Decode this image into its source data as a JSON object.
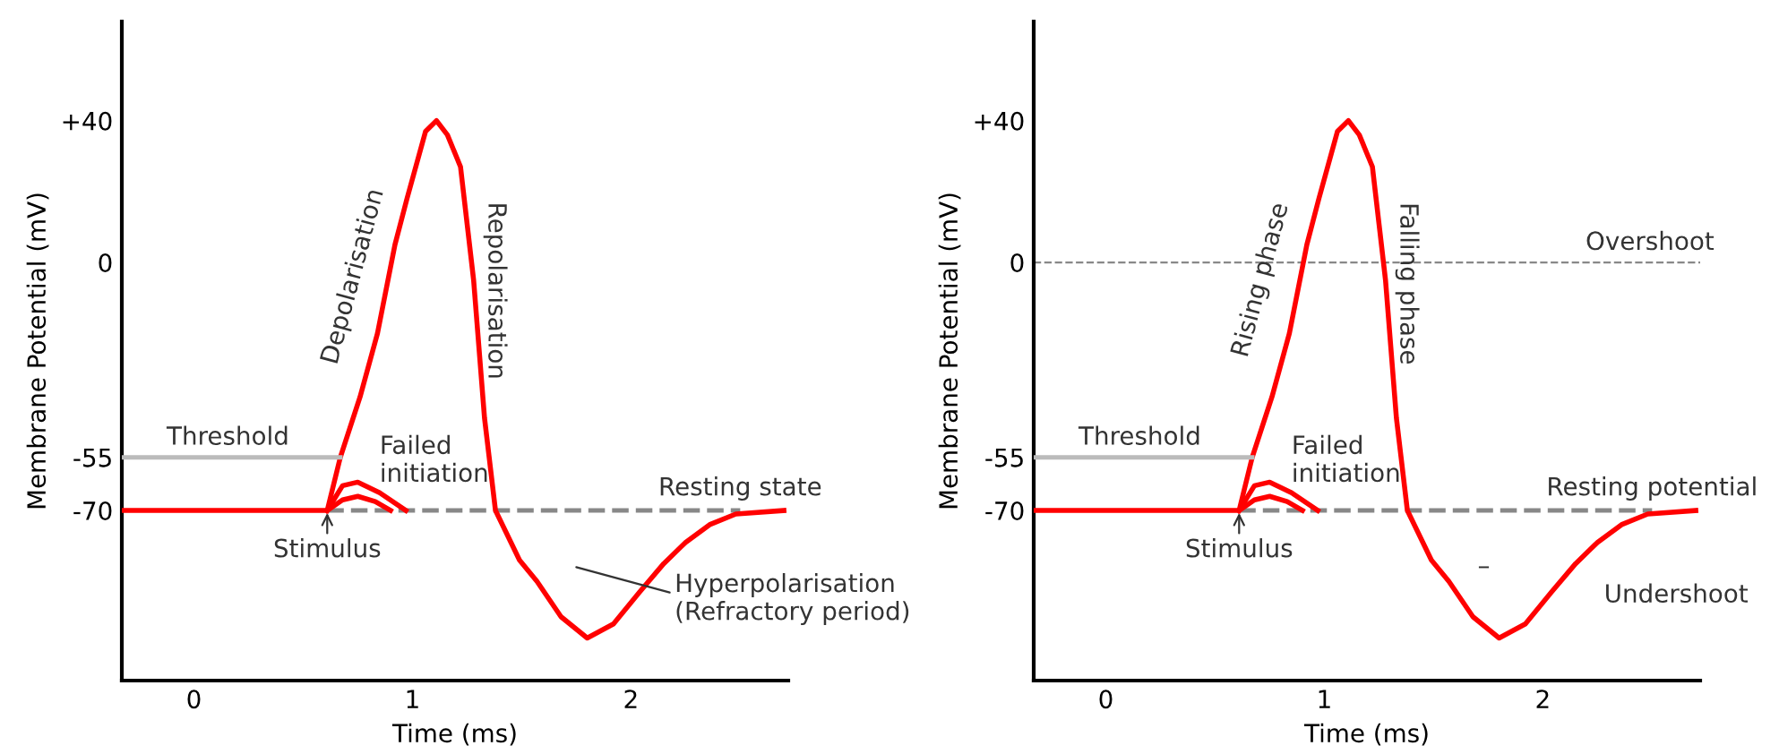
{
  "chart_data": [
    {
      "type": "line",
      "xlabel": "Time (ms)",
      "ylabel": "Membrane Potential (mV)",
      "xlim": [
        -0.33,
        2.72
      ],
      "ylim": [
        -118,
        68
      ],
      "xticks": [
        0,
        1,
        2
      ],
      "yticks": [
        {
          "value": 40,
          "label": "+40"
        },
        0,
        -55,
        -70
      ],
      "grid": false,
      "legend": false,
      "line_style": "solid",
      "marker": "none",
      "series": [
        {
          "color": "#ff0000",
          "x": [
            -0.33,
            0.61,
            0.67,
            0.76,
            0.84,
            0.92,
            0.975,
            1.06,
            1.11,
            1.16,
            1.22,
            1.28,
            1.33,
            1.38,
            1.49,
            1.57,
            1.68,
            1.8,
            1.92,
            2.04,
            2.15,
            2.25,
            2.36,
            2.48,
            2.7
          ],
          "values": [
            -70,
            -70,
            -55,
            -38,
            -20,
            5,
            18,
            37,
            40,
            36,
            27,
            -5,
            -44,
            -70,
            -84,
            -90,
            -100,
            -106,
            -102,
            -93,
            -85,
            -79,
            -74,
            -71,
            -70
          ]
        },
        {
          "color": "#ff0000",
          "x": [
            0.61,
            0.68,
            0.75,
            0.85,
            0.97
          ],
          "values": [
            -70,
            -63,
            -62,
            -65,
            -70
          ]
        },
        {
          "color": "#ff0000",
          "x": [
            0.61,
            0.68,
            0.75,
            0.83,
            0.9
          ],
          "values": [
            -70,
            -67,
            -66,
            -67.5,
            -70
          ]
        },
        {
          "name": "Threshold",
          "color": "#bbbbbb",
          "x": [
            -0.33,
            0.67
          ],
          "values": [
            -55,
            -55
          ]
        },
        {
          "name": "Resting state",
          "color": "#888888",
          "line_style": "dashed",
          "x": [
            0.61,
            2.5
          ],
          "values": [
            -70,
            -70
          ]
        }
      ],
      "annotations": [
        "Depolarisation",
        "Repolarisation",
        "Failed\ninitiation",
        {
          "text": "Stimulus",
          "x": 0.61,
          "y": -70
        },
        "Hyperpolarisation\n(Refractory period)"
      ]
    },
    {
      "type": "line",
      "xlabel": "Time (ms)",
      "ylabel": "Membrane Potential (mV)",
      "xlim": [
        -0.33,
        2.72
      ],
      "ylim": [
        -118,
        68
      ],
      "xticks": [
        0,
        1,
        2
      ],
      "yticks": [
        {
          "value": 40,
          "label": "+40"
        },
        0,
        -55,
        -70
      ],
      "grid": false,
      "legend": false,
      "line_style": "solid",
      "marker": "none",
      "series": [
        {
          "color": "#ff0000",
          "x": [
            -0.33,
            0.61,
            0.67,
            0.76,
            0.84,
            0.92,
            0.975,
            1.06,
            1.11,
            1.16,
            1.22,
            1.28,
            1.33,
            1.38,
            1.49,
            1.57,
            1.68,
            1.8,
            1.92,
            2.04,
            2.15,
            2.25,
            2.36,
            2.48,
            2.7
          ],
          "values": [
            -70,
            -70,
            -55,
            -38,
            -20,
            5,
            18,
            37,
            40,
            36,
            27,
            -5,
            -44,
            -70,
            -84,
            -90,
            -100,
            -106,
            -102,
            -93,
            -85,
            -79,
            -74,
            -71,
            -70
          ]
        },
        {
          "color": "#ff0000",
          "x": [
            0.61,
            0.68,
            0.75,
            0.85,
            0.97
          ],
          "values": [
            -70,
            -63,
            -62,
            -65,
            -70
          ]
        },
        {
          "color": "#ff0000",
          "x": [
            0.61,
            0.68,
            0.75,
            0.83,
            0.9
          ],
          "values": [
            -70,
            -67,
            -66,
            -67.5,
            -70
          ]
        },
        {
          "name": "Threshold",
          "color": "#bbbbbb",
          "x": [
            -0.33,
            0.67
          ],
          "values": [
            -55,
            -55
          ]
        },
        {
          "name": "Resting potential",
          "color": "#888888",
          "line_style": "dashed",
          "x": [
            0.61,
            2.5
          ],
          "values": [
            -70,
            -70
          ]
        }
      ],
      "ref_lines": [
        {
          "axis": "y",
          "value": 0,
          "label": "Overshoot",
          "color": "#888888",
          "line_style": "dashed"
        }
      ],
      "annotations": [
        "Rising phase",
        "Falling phase",
        "Failed\ninitiation",
        {
          "text": "Stimulus",
          "x": 0.61,
          "y": -70
        },
        "–",
        "Undershoot"
      ]
    }
  ]
}
